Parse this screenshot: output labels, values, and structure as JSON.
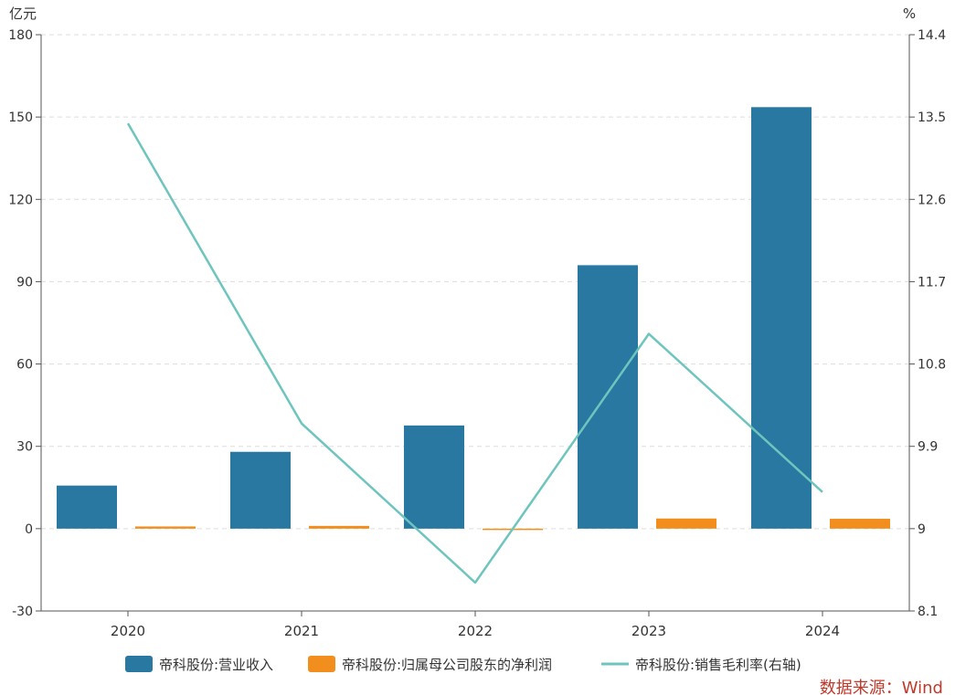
{
  "chart_data": {
    "type": "bar",
    "categories": [
      "2020",
      "2021",
      "2022",
      "2023",
      "2024"
    ],
    "left_axis": {
      "unit_label": "亿元",
      "ylim": [
        -30,
        180
      ],
      "ticks": [
        -30,
        0,
        30,
        60,
        90,
        120,
        150,
        180
      ]
    },
    "right_axis": {
      "unit_label": "%",
      "ylim": [
        8.1,
        14.4
      ],
      "ticks": [
        "8.1",
        "9",
        "9.9",
        "10.8",
        "11.7",
        "12.6",
        "13.5",
        "14.4"
      ]
    },
    "series": [
      {
        "name": "帝科股份:营业收入",
        "type": "bar",
        "axis": "left",
        "color": "#2878a2",
        "values": [
          15.7,
          28.0,
          37.6,
          96.0,
          153.6
        ]
      },
      {
        "name": "帝科股份:归属母公司股东的净利润",
        "type": "bar",
        "axis": "left",
        "color": "#f28e1e",
        "values": [
          0.8,
          1.0,
          -0.4,
          3.7,
          3.6
        ]
      },
      {
        "name": "帝科股份:销售毛利率(右轴)",
        "type": "line",
        "axis": "right",
        "color": "#6ec5bd",
        "values": [
          13.43,
          10.15,
          8.41,
          11.13,
          9.4
        ]
      }
    ],
    "grid": true,
    "legend_position": "bottom"
  },
  "source": "数据来源：Wind"
}
